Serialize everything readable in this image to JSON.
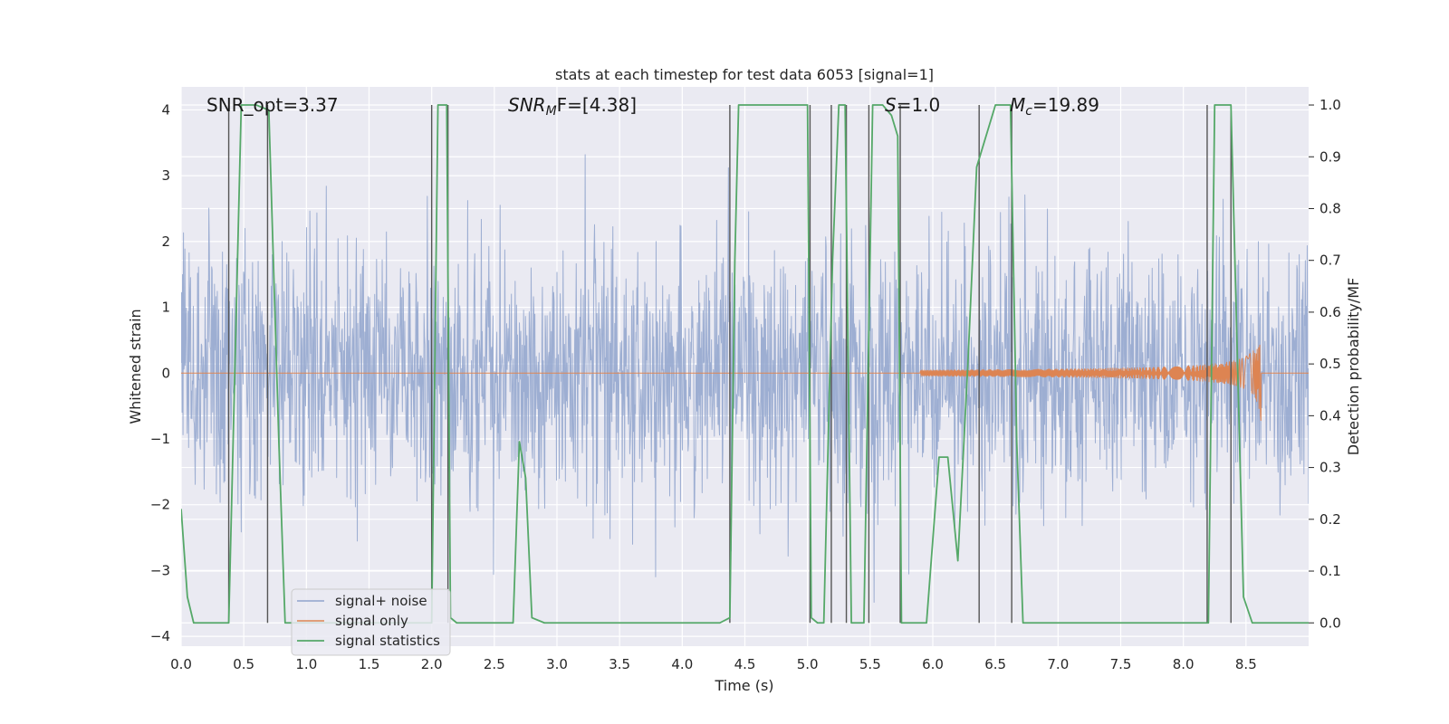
{
  "chart_data": {
    "type": "line",
    "title": "stats at each timestep for test data 6053 [signal=1]",
    "xlabel": "Time (s)",
    "ylabel": "Whitened strain",
    "y2label": "Detection probability/MF",
    "xlim": [
      0.0,
      9.0
    ],
    "ylim": [
      -4.15,
      4.35
    ],
    "y2lim": [
      -0.045,
      1.035
    ],
    "xticks": [
      "0.0",
      "0.5",
      "1.0",
      "1.5",
      "2.0",
      "2.5",
      "3.0",
      "3.5",
      "4.0",
      "4.5",
      "5.0",
      "5.5",
      "6.0",
      "6.5",
      "7.0",
      "7.5",
      "8.0",
      "8.5"
    ],
    "yticks": [
      "4",
      "3",
      "2",
      "1",
      "0",
      "−1",
      "−2",
      "−3",
      "−4"
    ],
    "y2ticks": [
      "1.0",
      "0.9",
      "0.8",
      "0.7",
      "0.6",
      "0.5",
      "0.4",
      "0.3",
      "0.2",
      "0.1",
      "0.0"
    ],
    "annotations": {
      "snr_opt": "SNR_opt=3.37",
      "snr_mf_italic": "SNR",
      "snr_mf_sub": "M",
      "snr_mf_rest": "F=[4.38]",
      "s_italic": "S",
      "s_rest": "=1.0",
      "mc_italic": "M",
      "mc_sub": "c",
      "mc_rest": "=19.89"
    },
    "legend": {
      "position": "lower-left",
      "entries": [
        "signal+ noise",
        "signal only",
        "signal statistics"
      ]
    },
    "colors": {
      "noise": "#8fa3cc",
      "signal": "#dd8452",
      "stats": "#55a868",
      "vlines": "#555555",
      "background": "#eaeaf2",
      "grid": "#ffffff"
    },
    "series": [
      {
        "name": "signal+ noise",
        "axis": "left",
        "note": "dense whitened strain noise, mostly within ±2, peaks to about ±3.5"
      },
      {
        "name": "signal only",
        "axis": "left",
        "note": "chirp growing from ~0 at 6 s to about ±1 amplitude at 8.62 s",
        "chirp_start": 5.9,
        "chirp_end": 8.62,
        "max_amplitude": 0.75
      },
      {
        "name": "signal statistics",
        "axis": "right",
        "x": [
          0.0,
          0.05,
          0.1,
          0.3,
          0.38,
          0.43,
          0.48,
          0.6,
          0.7,
          0.78,
          0.83,
          0.95,
          1.1,
          1.3,
          1.6,
          1.9,
          2.0,
          2.05,
          2.12,
          2.15,
          2.2,
          2.3,
          2.5,
          2.65,
          2.7,
          2.75,
          2.8,
          2.9,
          3.5,
          4.0,
          4.3,
          4.38,
          4.42,
          4.45,
          4.55,
          4.8,
          5.0,
          5.03,
          5.08,
          5.13,
          5.2,
          5.25,
          5.3,
          5.35,
          5.4,
          5.45,
          5.52,
          5.55,
          5.6,
          5.67,
          5.72,
          5.75,
          5.8,
          5.9,
          5.95,
          6.05,
          6.12,
          6.2,
          6.28,
          6.35,
          6.5,
          6.55,
          6.62,
          6.67,
          6.72,
          6.78,
          6.9,
          7.0,
          7.05,
          7.5,
          8.0,
          8.2,
          8.25,
          8.3,
          8.38,
          8.48,
          8.55,
          8.6,
          9.0
        ],
        "y": [
          0.22,
          0.05,
          0.0,
          0.0,
          0.0,
          0.5,
          1.0,
          1.0,
          0.99,
          0.35,
          0.0,
          0.0,
          0.0,
          0.0,
          0.0,
          0.0,
          0.0,
          1.0,
          1.0,
          0.01,
          0.0,
          0.0,
          0.0,
          0.0,
          0.35,
          0.28,
          0.01,
          0.0,
          0.0,
          0.0,
          0.0,
          0.01,
          0.7,
          1.0,
          1.0,
          1.0,
          1.0,
          0.01,
          0.0,
          0.0,
          0.7,
          1.0,
          1.0,
          0.0,
          0.0,
          0.0,
          1.0,
          1.0,
          1.0,
          0.98,
          0.94,
          0.0,
          0.0,
          0.0,
          0.0,
          0.32,
          0.32,
          0.12,
          0.5,
          0.88,
          1.0,
          1.0,
          1.0,
          0.35,
          0.0,
          0.0,
          0.0,
          0.0,
          0.0,
          0.0,
          0.0,
          0.0,
          1.0,
          1.0,
          1.0,
          0.05,
          0.0,
          0.0,
          0.0
        ]
      }
    ],
    "vertical_lines_x": [
      0.38,
      0.69,
      2.0,
      2.13,
      4.38,
      5.02,
      5.19,
      5.31,
      5.49,
      5.74,
      6.37,
      6.63,
      8.19,
      8.38
    ]
  }
}
